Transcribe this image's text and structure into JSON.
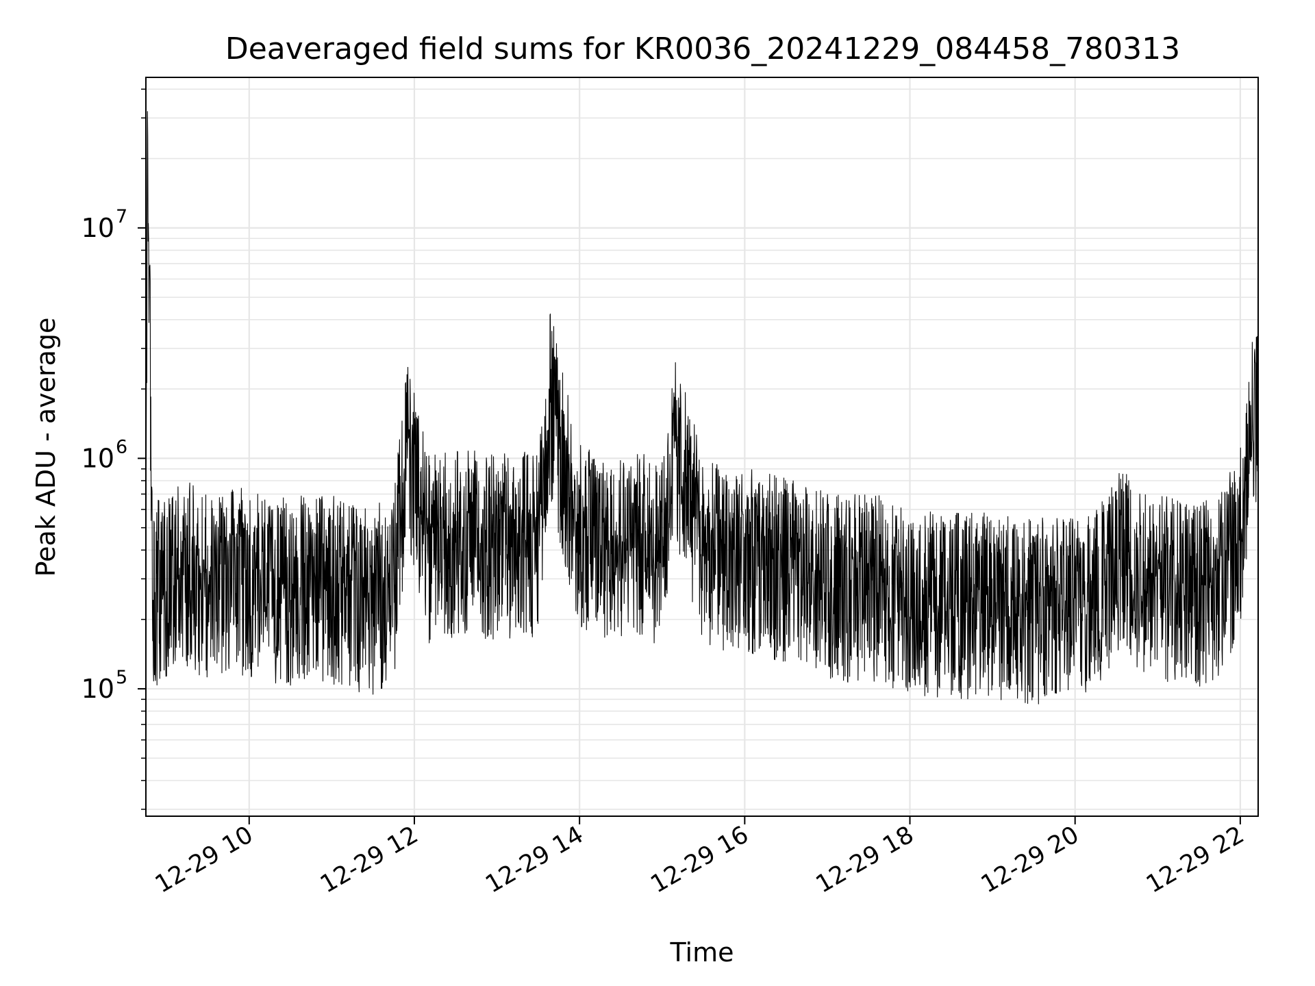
{
  "chart_data": {
    "type": "line",
    "title": "Deaveraged field sums for KR0036_20241229_084458_780313",
    "xlabel": "Time",
    "ylabel": "Peak ADU - average",
    "yscale": "log",
    "xlim": [
      "2024-12-29T08:44:58",
      "2024-12-29T22:13:00"
    ],
    "ylim": [
      28000,
      45000000
    ],
    "grid": true,
    "line_color": "#000000",
    "grid_color": "#e6e6e6",
    "x_ticks": [
      {
        "t": "2024-12-29T10:00:00",
        "label": "12-29 10"
      },
      {
        "t": "2024-12-29T12:00:00",
        "label": "12-29 12"
      },
      {
        "t": "2024-12-29T14:00:00",
        "label": "12-29 14"
      },
      {
        "t": "2024-12-29T16:00:00",
        "label": "12-29 16"
      },
      {
        "t": "2024-12-29T18:00:00",
        "label": "12-29 18"
      },
      {
        "t": "2024-12-29T20:00:00",
        "label": "12-29 20"
      },
      {
        "t": "2024-12-29T22:00:00",
        "label": "12-29 22"
      }
    ],
    "y_ticks": [
      {
        "v": 100000,
        "base": "10",
        "exp": "5"
      },
      {
        "v": 1000000,
        "base": "10",
        "exp": "6"
      },
      {
        "v": 10000000,
        "base": "10",
        "exp": "7"
      }
    ],
    "series": [
      {
        "x": [
          "2024-12-29T08:45:00",
          "2024-12-29T08:46:00",
          "2024-12-29T08:50:00",
          "2024-12-29T09:00:00",
          "2024-12-29T09:15:00",
          "2024-12-29T09:30:00",
          "2024-12-29T09:45:00",
          "2024-12-29T10:00:00",
          "2024-12-29T10:15:00",
          "2024-12-29T10:30:00",
          "2024-12-29T10:45:00",
          "2024-12-29T11:00:00",
          "2024-12-29T11:15:00",
          "2024-12-29T11:30:00",
          "2024-12-29T11:45:00",
          "2024-12-29T11:55:00",
          "2024-12-29T12:10:00",
          "2024-12-29T12:30:00",
          "2024-12-29T12:45:00",
          "2024-12-29T13:00:00",
          "2024-12-29T13:15:00",
          "2024-12-29T13:30:00",
          "2024-12-29T13:38:00",
          "2024-12-29T14:00:00",
          "2024-12-29T14:15:00",
          "2024-12-29T14:30:00",
          "2024-12-29T14:45:00",
          "2024-12-29T15:00:00",
          "2024-12-29T15:10:00",
          "2024-12-29T15:30:00",
          "2024-12-29T15:45:00",
          "2024-12-29T16:00:00",
          "2024-12-29T16:15:00",
          "2024-12-29T16:30:00",
          "2024-12-29T16:45:00",
          "2024-12-29T17:00:00",
          "2024-12-29T17:15:00",
          "2024-12-29T17:30:00",
          "2024-12-29T17:45:00",
          "2024-12-29T18:00:00",
          "2024-12-29T18:15:00",
          "2024-12-29T18:30:00",
          "2024-12-29T18:45:00",
          "2024-12-29T19:00:00",
          "2024-12-29T19:15:00",
          "2024-12-29T19:30:00",
          "2024-12-29T19:45:00",
          "2024-12-29T20:00:00",
          "2024-12-29T20:15:00",
          "2024-12-29T20:35:00",
          "2024-12-29T20:45:00",
          "2024-12-29T21:00:00",
          "2024-12-29T21:15:00",
          "2024-12-29T21:30:00",
          "2024-12-29T21:45:00",
          "2024-12-29T22:00:00",
          "2024-12-29T22:10:00"
        ],
        "y": [
          300000,
          32000000,
          280000,
          320000,
          350000,
          300000,
          330000,
          320000,
          300000,
          290000,
          310000,
          300000,
          280000,
          270000,
          300000,
          1200000,
          450000,
          480000,
          470000,
          450000,
          480000,
          460000,
          2000000,
          500000,
          470000,
          480000,
          460000,
          430000,
          1200000,
          440000,
          420000,
          400000,
          380000,
          360000,
          330000,
          320000,
          300000,
          310000,
          290000,
          270000,
          260000,
          250000,
          260000,
          250000,
          250000,
          240000,
          250000,
          260000,
          270000,
          450000,
          350000,
          310000,
          300000,
          280000,
          300000,
          500000,
          1700000
        ],
        "noise_low": 0.35,
        "noise_high": 2.3
      }
    ]
  }
}
